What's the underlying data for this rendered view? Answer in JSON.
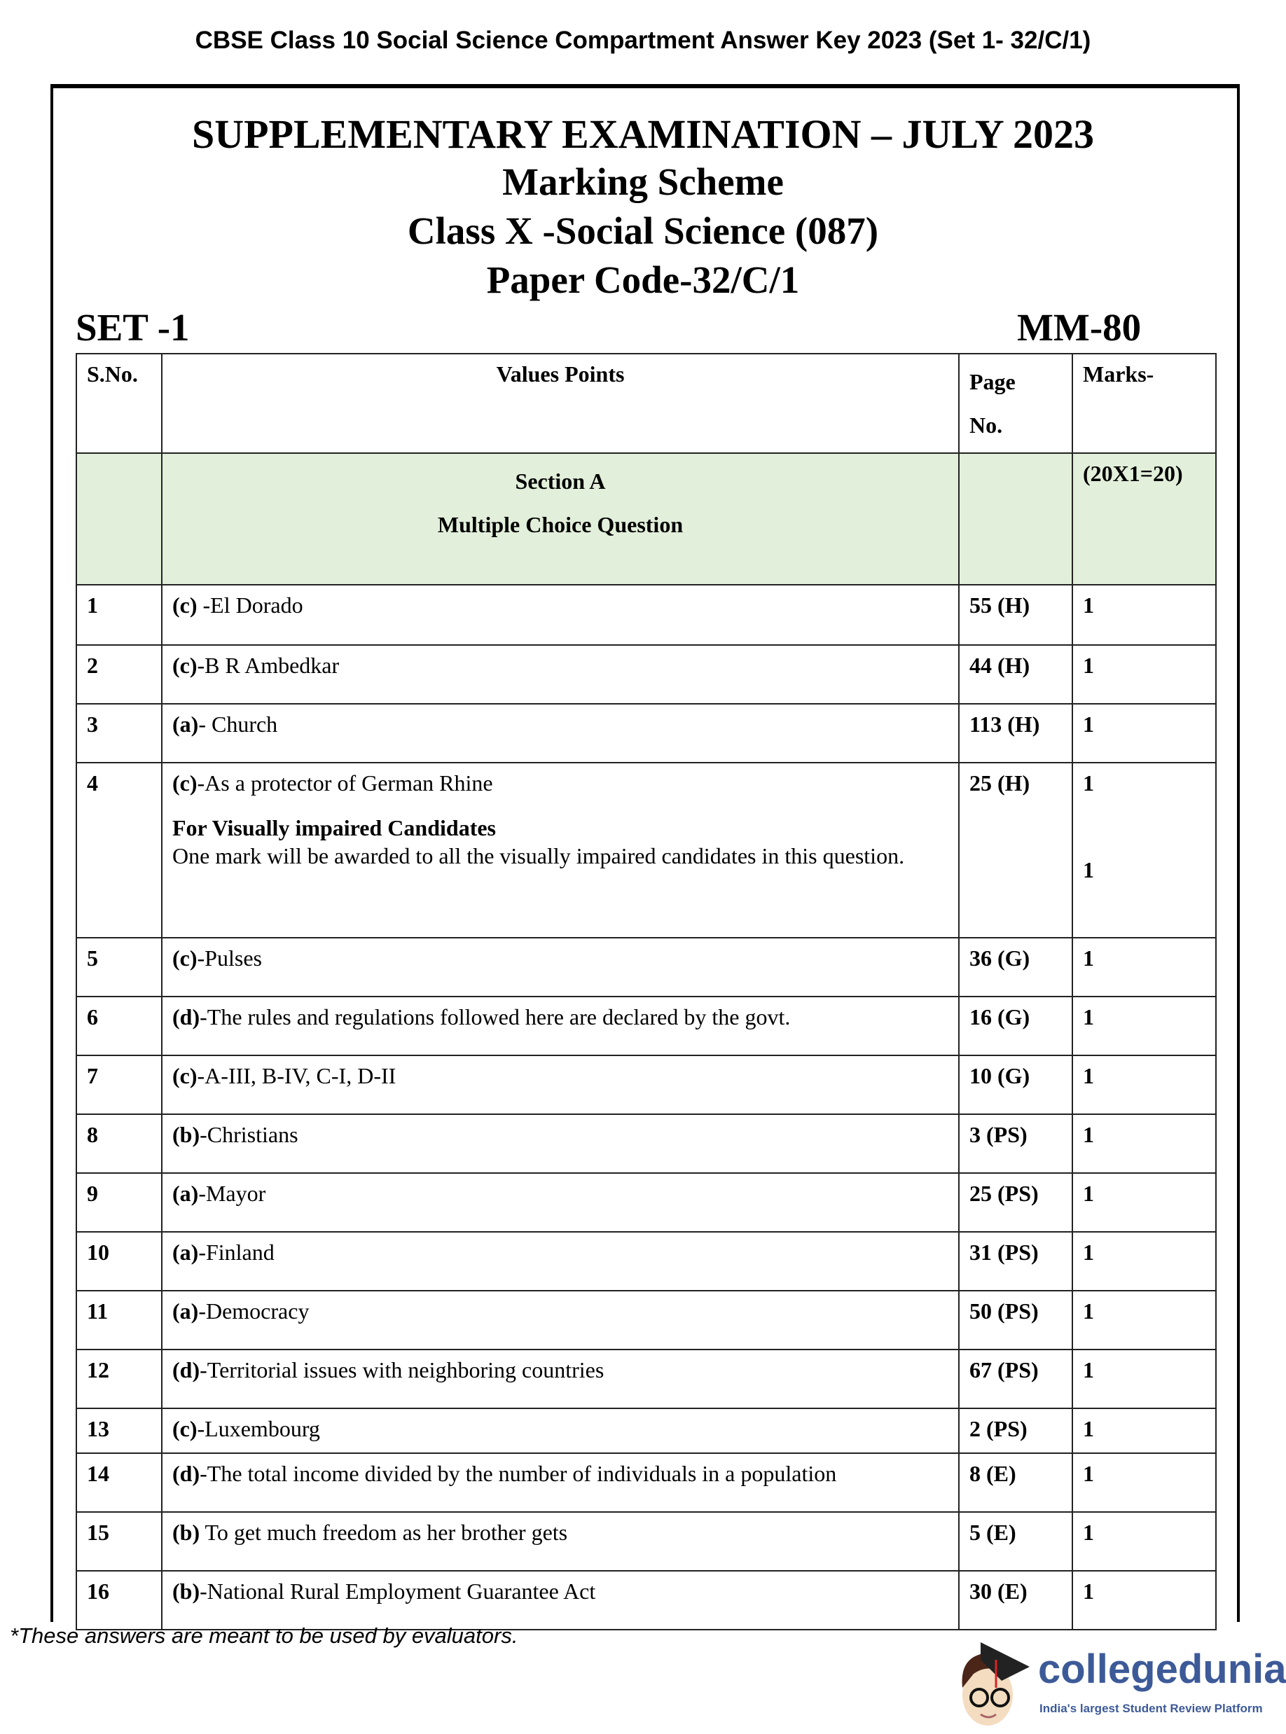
{
  "page_title": "CBSE Class 10 Social Science Compartment Answer Key 2023 (Set 1- 32/C/1)",
  "heading": {
    "exam": "SUPPLEMENTARY EXAMINATION – JULY 2023",
    "scheme": "Marking Scheme",
    "class": "Class X -Social Science (087)",
    "paper_code": "Paper Code-32/C/1",
    "set": "SET -1",
    "max_marks": "MM-80"
  },
  "table": {
    "headers": {
      "sno": "S.No.",
      "values": "Values Points",
      "page_1": "Page",
      "page_2": "No.",
      "marks": "Marks-"
    },
    "section": {
      "title": "Section A",
      "subtitle": "Multiple Choice Question",
      "marks": "(20X1=20)"
    },
    "rows": [
      {
        "sno": "1",
        "opt": "(c)",
        "text": " -El Dorado",
        "page": "55 (H)",
        "marks": "1"
      },
      {
        "sno": "2",
        "opt": "(c)",
        "text": "-B R Ambedkar",
        "page": "44 (H)",
        "marks": "1"
      },
      {
        "sno": "3",
        "opt": "(a)",
        "text": "- Church",
        "page": "113 (H)",
        "marks": "1"
      },
      {
        "sno": "4",
        "opt": "(c)",
        "text": "-As a protector of German Rhine",
        "page": "25 (H)",
        "marks": "1",
        "note_title": "For Visually impaired Candidates",
        "note": "One mark will be awarded to all the visually impaired candidates in this question.",
        "note_marks": "1"
      },
      {
        "sno": "5",
        "opt": "(c)",
        "text": "-Pulses",
        "page": "36 (G)",
        "marks": "1"
      },
      {
        "sno": "6",
        "opt": "(d)",
        "text": "-The rules and regulations followed here are declared by the govt.",
        "page": "16 (G)",
        "marks": "1"
      },
      {
        "sno": "7",
        "opt": "(c)",
        "text": "-A-III, B-IV, C-I, D-II",
        "page": "10 (G)",
        "marks": "1"
      },
      {
        "sno": "8",
        "opt": "(b)",
        "text": "-Christians",
        "page": "3 (PS)",
        "marks": "1"
      },
      {
        "sno": "9",
        "opt": "(a)",
        "text": "-Mayor",
        "page": "25 (PS)",
        "marks": "1"
      },
      {
        "sno": "10",
        "opt": "(a)",
        "text": "-Finland",
        "page": "31 (PS)",
        "marks": "1"
      },
      {
        "sno": "11",
        "opt": "(a)",
        "text": "-Democracy",
        "page": "50 (PS)",
        "marks": "1"
      },
      {
        "sno": "12",
        "opt": "(d)",
        "text": "-Territorial issues with neighboring countries",
        "page": "67 (PS)",
        "marks": "1"
      },
      {
        "sno": "13",
        "opt": "(c)",
        "text": "-Luxembourg",
        "page": "2 (PS)",
        "marks": "1"
      },
      {
        "sno": "14",
        "opt": "(d)",
        "text": "-The total income divided by the number of individuals in a population",
        "page": "8 (E)",
        "marks": "1"
      },
      {
        "sno": "15",
        "opt": "(b)",
        "text": " To get much freedom as her brother gets",
        "page": "5 (E)",
        "marks": "1"
      },
      {
        "sno": "16",
        "opt": "(b)",
        "text": "-National Rural Employment Guarantee Act",
        "page": "30 (E)",
        "marks": "1"
      }
    ]
  },
  "footnote": "*These answers are meant to be used by evaluators.",
  "logo": {
    "name": "collegedunia",
    "tagline": "India's largest Student Review Platform",
    "color": "#3d5a98"
  }
}
